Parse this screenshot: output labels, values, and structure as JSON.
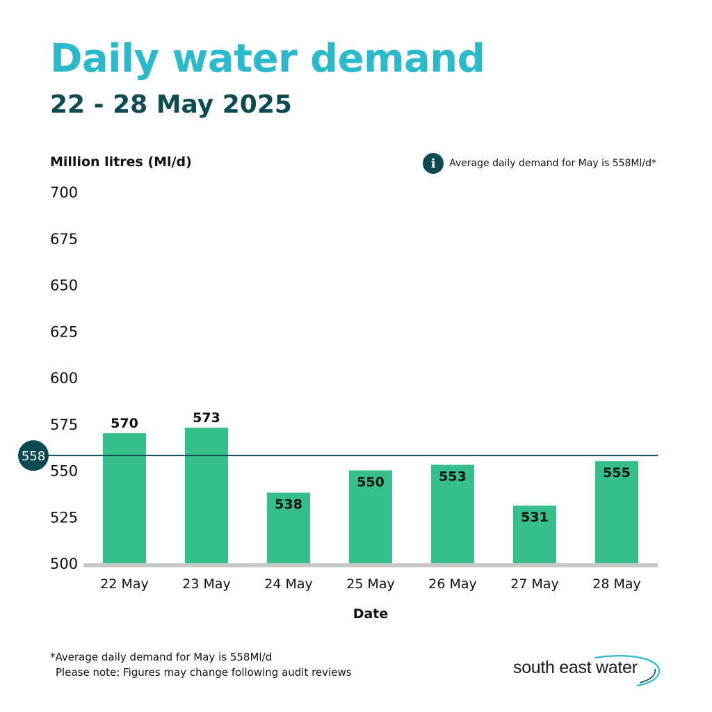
{
  "header": {
    "title": "Daily water demand",
    "subtitle": "22 - 28 May 2025"
  },
  "info": {
    "icon": "info-icon",
    "icon_glyph": "i",
    "text": "Average daily demand for May is 558Ml/d*"
  },
  "footnote": {
    "line1": "*Average daily demand for May is 558Ml/d",
    "line2": "Please note: Figures may change following audit reviews"
  },
  "logo": {
    "text": "south east water"
  },
  "colors": {
    "title": "#2bb9cc",
    "subtitle": "#0e4a52",
    "bar": "#36bf8a",
    "average_line": "#0e4a52",
    "baseline": "#c8c8c8"
  },
  "chart_data": {
    "type": "bar",
    "title": "Daily water demand",
    "subtitle": "22 - 28 May 2025",
    "ylabel": "Million litres (Ml/d)",
    "xlabel": "Date",
    "categories": [
      "22 May",
      "23 May",
      "24 May",
      "25 May",
      "26 May",
      "27 May",
      "28 May"
    ],
    "values": [
      570,
      573,
      538,
      550,
      553,
      531,
      555
    ],
    "value_labels": [
      "570",
      "573",
      "538",
      "550",
      "553",
      "531",
      "555"
    ],
    "label_position": [
      "above",
      "above",
      "inside",
      "inside",
      "inside",
      "inside",
      "inside"
    ],
    "ylim": [
      500,
      700
    ],
    "yticks": [
      500,
      525,
      550,
      575,
      600,
      625,
      650,
      675,
      700
    ],
    "ytick_labels": [
      "500",
      "525",
      "550",
      "575",
      "600",
      "625",
      "650",
      "675",
      "700"
    ],
    "reference_line": {
      "value": 558,
      "label": "558"
    },
    "grid": false
  }
}
